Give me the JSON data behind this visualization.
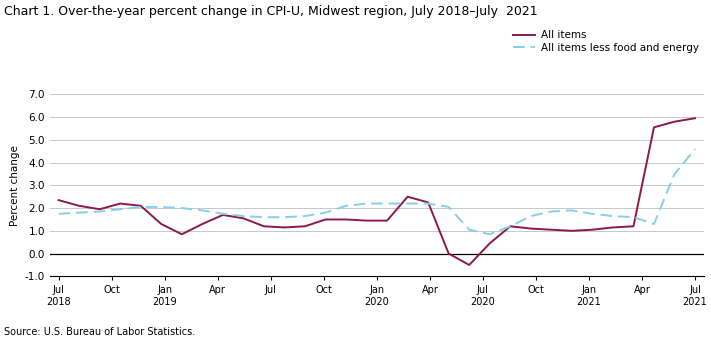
{
  "title": "Chart 1. Over-the-year percent change in CPI-U, Midwest region, July 2018–July  2021",
  "ylabel": "Percent change",
  "source": "Source: U.S. Bureau of Labor Statistics.",
  "all_items": [
    2.35,
    2.1,
    1.95,
    2.2,
    2.1,
    1.3,
    0.85,
    1.3,
    1.7,
    1.55,
    1.2,
    1.15,
    1.2,
    1.5,
    1.5,
    1.45,
    1.45,
    2.5,
    2.25,
    0.0,
    -0.5,
    0.45,
    1.2,
    1.1,
    1.05,
    1.0,
    1.05,
    1.15,
    1.2,
    5.55,
    5.8,
    5.95
  ],
  "core_items": [
    1.75,
    1.8,
    1.85,
    1.95,
    2.05,
    2.05,
    2.0,
    1.9,
    1.75,
    1.65,
    1.6,
    1.6,
    1.65,
    1.8,
    2.1,
    2.2,
    2.2,
    2.2,
    2.2,
    2.05,
    1.05,
    0.85,
    1.2,
    1.65,
    1.85,
    1.9,
    1.75,
    1.65,
    1.6,
    1.3,
    3.5,
    4.6
  ],
  "x_tick_positions": [
    0,
    3,
    6,
    9,
    12,
    15,
    18,
    21,
    24,
    27,
    30,
    33,
    36
  ],
  "x_tick_labels": [
    "Jul\n2018",
    "Oct",
    "Jan\n2019",
    "Apr",
    "Jul",
    "Oct",
    "Jan\n2020",
    "Apr",
    "Jul\n2020",
    "Oct",
    "Jan\n2021",
    "Apr",
    "Jul\n2021"
  ],
  "ylim": [
    -1.0,
    7.0
  ],
  "yticks": [
    -1.0,
    0.0,
    1.0,
    2.0,
    3.0,
    4.0,
    5.0,
    6.0,
    7.0
  ],
  "all_items_color": "#8B1A4A",
  "core_items_color": "#87CEEB",
  "all_items_label": "All items",
  "core_items_label": "All items less food and energy",
  "grid_color": "#C8C8C8",
  "background_color": "#FFFFFF"
}
